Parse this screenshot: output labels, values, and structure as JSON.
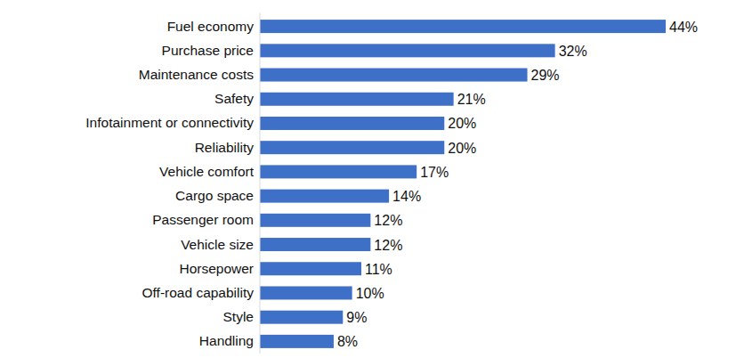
{
  "chart_data": {
    "type": "bar",
    "orientation": "horizontal",
    "categories": [
      "Fuel economy",
      "Purchase price",
      "Maintenance costs",
      "Safety",
      "Infotainment or connectivity",
      "Reliability",
      "Vehicle comfort",
      "Cargo space",
      "Passenger room",
      "Vehicle size",
      "Horsepower",
      "Off-road capability",
      "Style",
      "Handling"
    ],
    "values": [
      44,
      32,
      29,
      21,
      20,
      20,
      17,
      14,
      12,
      12,
      11,
      10,
      9,
      8
    ],
    "value_labels": [
      "44%",
      "32%",
      "29%",
      "21%",
      "20%",
      "20%",
      "17%",
      "14%",
      "12%",
      "12%",
      "11%",
      "10%",
      "9%",
      "8%"
    ],
    "color": "#3e70c8",
    "xlim": [
      0,
      44
    ],
    "data_labels": true,
    "tick_labels": "y",
    "grid": false
  }
}
